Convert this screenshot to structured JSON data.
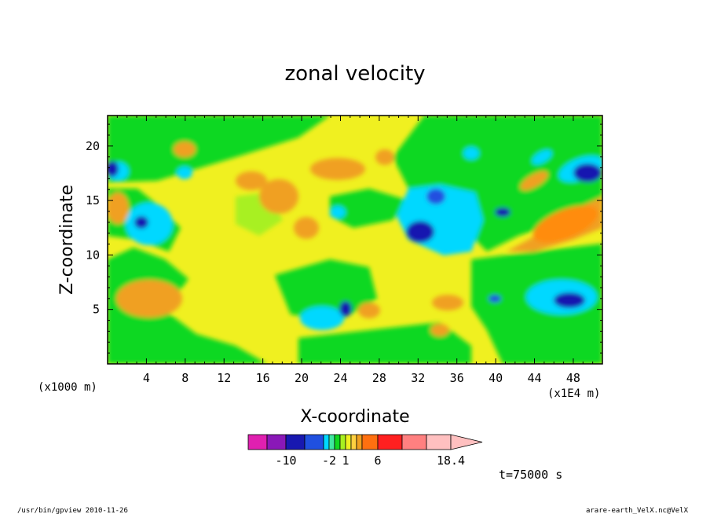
{
  "chart_data": {
    "type": "heatmap",
    "title": "zonal velocity",
    "xlabel": "X-coordinate",
    "ylabel": "Z-coordinate",
    "x_unit_label": "(x1E4 m)",
    "z_unit_label": "(x1000 m)",
    "xlim": [
      0,
      51
    ],
    "ylim": [
      0,
      22.8
    ],
    "x_ticks": [
      4,
      8,
      12,
      16,
      20,
      24,
      28,
      32,
      36,
      40,
      44,
      48
    ],
    "y_ticks": [
      5,
      10,
      15,
      20
    ],
    "colorbar": {
      "tick_labels": [
        "-10",
        "-2",
        "1",
        "6",
        "18.4"
      ],
      "tick_values": [
        -10,
        -2,
        1,
        6,
        18.4
      ],
      "boundaries": [
        -18,
        -14,
        -10,
        -6,
        -3,
        -2,
        -1,
        0,
        1,
        2,
        3,
        4,
        6,
        10,
        14,
        18.4
      ],
      "colors": [
        "#e020b0",
        "#8a18b8",
        "#1818b0",
        "#2050e0",
        "#00d8ff",
        "#40e8a0",
        "#10d820",
        "#a8f020",
        "#f0f020",
        "#ffd040",
        "#f0a020",
        "#ff7010",
        "#ff2020",
        "#ff8080",
        "#ffc0c0"
      ]
    },
    "time_label": "t=75000 s",
    "regions": [
      {
        "label": "yellow",
        "x": 26,
        "z": 8,
        "value": 1.5
      },
      {
        "label": "green",
        "x": 6,
        "z": 20,
        "value": 0.5
      },
      {
        "label": "orange",
        "x": 5.5,
        "z": 6.5,
        "value": 4
      },
      {
        "label": "orange",
        "x": 17.5,
        "z": 15.5,
        "value": 4
      },
      {
        "label": "orange",
        "x": 46,
        "z": 13.5,
        "value": 5
      },
      {
        "label": "cyan",
        "x": 3.5,
        "z": 13,
        "value": -2.5
      },
      {
        "label": "blue",
        "x": 3.5,
        "z": 13,
        "value": -5
      },
      {
        "label": "cyan",
        "x": 34.5,
        "z": 13,
        "value": -2.5
      },
      {
        "label": "blue",
        "x": 32,
        "z": 12.5,
        "value": -5
      },
      {
        "label": "cyan",
        "x": 46,
        "z": 6.5,
        "value": -2.5
      },
      {
        "label": "blue",
        "x": 47.5,
        "z": 6,
        "value": -5
      },
      {
        "label": "cyan",
        "x": 22.5,
        "z": 4.5,
        "value": -2.5
      },
      {
        "label": "blue",
        "x": 48.5,
        "z": 17.5,
        "value": -6
      },
      {
        "label": "blue",
        "x": 0.5,
        "z": 17.8,
        "value": -6
      }
    ]
  },
  "footer": {
    "left": "/usr/bin/gpview   2010-11-26",
    "right": "arare-earth_VelX.nc@VelX"
  }
}
